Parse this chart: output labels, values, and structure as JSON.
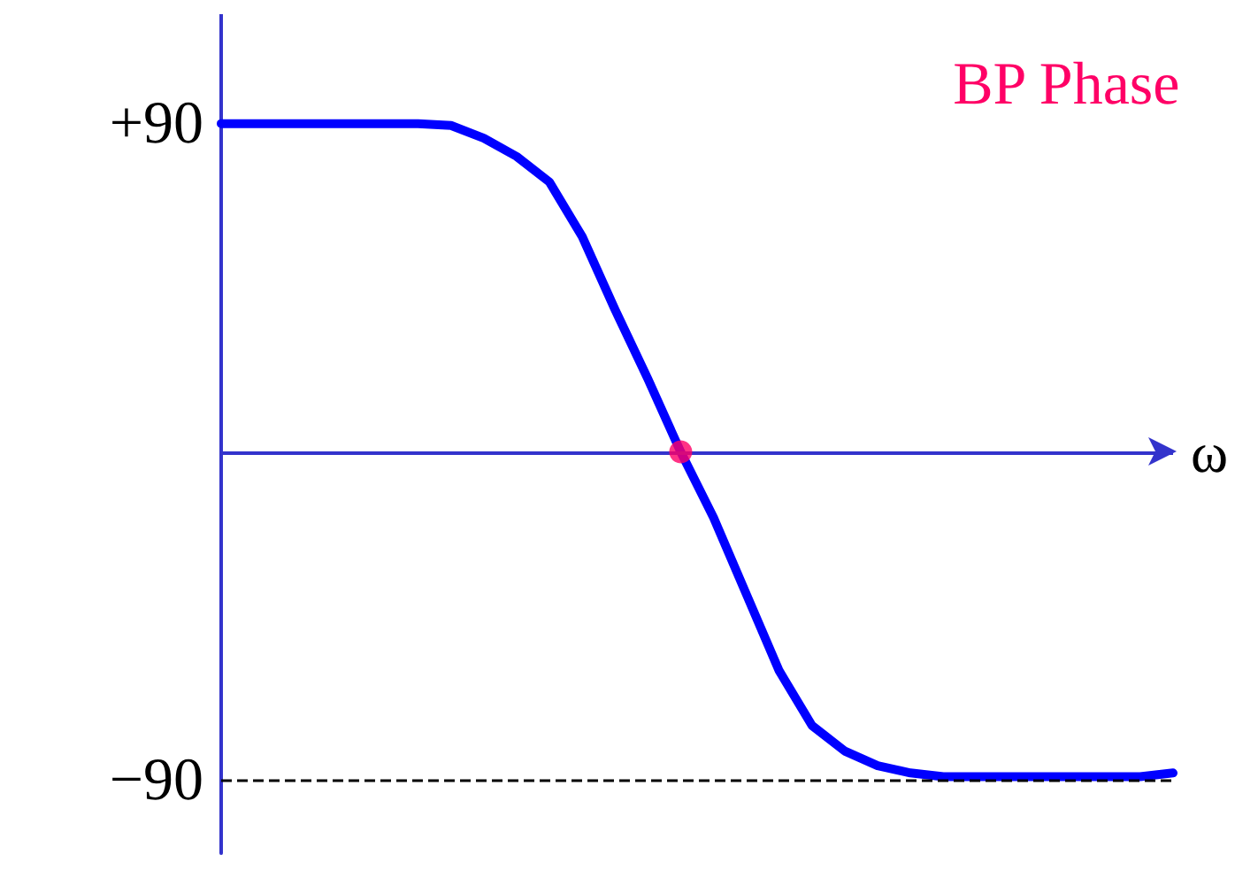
{
  "chart_data": {
    "type": "line",
    "title": "BP Phase",
    "xlabel": "ω",
    "categories": [
      null,
      null,
      null,
      null,
      null,
      null,
      null,
      null,
      null,
      null,
      null,
      null,
      null,
      null,
      null,
      null,
      null,
      null,
      null,
      null,
      null,
      null,
      null,
      null,
      null,
      null,
      null,
      null,
      null,
      null
    ],
    "series": [
      {
        "color": "#0000ff",
        "values": [
          90,
          90,
          90,
          90,
          90,
          90,
          90,
          89.5,
          86,
          81,
          74,
          59,
          39,
          20,
          0,
          -18,
          -39,
          -60,
          -75,
          -82,
          -86,
          -88,
          -89,
          -89,
          -89,
          -89,
          -89,
          -89,
          -89,
          -88
        ]
      },
      {
        "type": "scatter",
        "color": "#ff0066",
        "values": [
          null,
          null,
          null,
          null,
          null,
          null,
          null,
          null,
          null,
          null,
          null,
          null,
          null,
          null,
          0,
          null,
          null,
          null,
          null,
          null,
          null,
          null,
          null,
          null,
          null,
          null,
          null,
          null,
          null,
          null
        ]
      }
    ],
    "ylim": [
      -110,
      120
    ],
    "yticks": [
      {
        "value": 90,
        "label": "+90"
      },
      {
        "value": -90,
        "label": "−90"
      }
    ],
    "ref_lines": [
      {
        "axis": "y",
        "value": 0,
        "color": "#3333cc",
        "line_style": "solid"
      },
      {
        "axis": "y",
        "value": -90,
        "color": "#000000",
        "line_style": "dashed"
      }
    ],
    "tick_labels": "y",
    "grid": false,
    "line_style": "solid"
  }
}
